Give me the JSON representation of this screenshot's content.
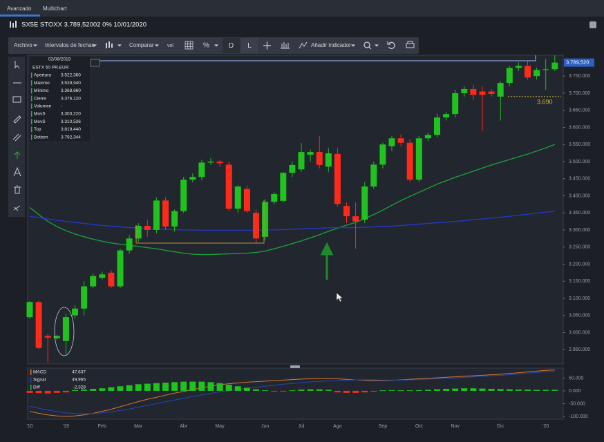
{
  "tabs": [
    "Avanzado",
    "Multichart"
  ],
  "header": "SX5E STOXX 3.789,52002 0% 10/01/2020",
  "toolbar": {
    "file": "Archivo",
    "ranges": "Intervalos de fechas",
    "compare": "Comparar",
    "volume": "vol",
    "percent": "%",
    "daily": "D",
    "log": "L",
    "add_indicator": "Añadir indicador"
  },
  "info_box": {
    "date": "02/08/2019",
    "name": "ESTX 50 PR.EUR",
    "rows": [
      [
        "Apertura",
        "3.522,360"
      ],
      [
        "Máximo",
        "3.539,940"
      ],
      [
        "Mínimo",
        "3.368,660"
      ],
      [
        "Cierre",
        "3.376,120"
      ],
      [
        "Volumen",
        "-"
      ],
      [
        "MovS",
        "3.303,220"
      ],
      [
        "MovS",
        "3.310,536"
      ],
      [
        "Top",
        "3.819,440"
      ],
      [
        "Bottom",
        "3.792,344"
      ]
    ]
  },
  "chart_data": [
    {
      "type": "candlestick",
      "categories": [
        "'10",
        null,
        null,
        null,
        "'19",
        null,
        null,
        null,
        "Feb",
        null,
        null,
        null,
        "Mar",
        null,
        null,
        null,
        null,
        "Abr",
        null,
        null,
        null,
        "May",
        null,
        null,
        null,
        null,
        "Jun",
        null,
        null,
        null,
        "Jul",
        null,
        null,
        null,
        "Ago",
        null,
        null,
        null,
        null,
        "Sep",
        null,
        null,
        null,
        "Oct",
        null,
        null,
        null,
        "Nov",
        null,
        null,
        null,
        null,
        "Dic",
        null,
        null,
        null,
        null,
        "'20",
        null
      ],
      "open": [
        3045,
        3089,
        2990,
        2983,
        2975,
        3050,
        3070,
        3135,
        3160,
        3175,
        3135,
        3240,
        3275,
        3312,
        3300,
        3386,
        3310,
        3355,
        3447,
        3455,
        3497,
        3500,
        3491,
        3362,
        3420,
        3350,
        3280,
        3382,
        3385,
        3467,
        3477,
        3520,
        3528,
        3485,
        3522.36,
        3370,
        3340,
        3330,
        3427,
        3491,
        3545,
        3568,
        3555,
        3447,
        3568,
        3578,
        3629,
        3639,
        3700,
        3712,
        3705,
        3705,
        3690,
        3730,
        3774,
        3780,
        3750,
        3768,
        3770
      ],
      "high": [
        3092,
        3093,
        2995,
        2992,
        3055,
        3080,
        3150,
        3172,
        3178,
        3182,
        3245,
        3285,
        3320,
        3330,
        3395,
        3395,
        3360,
        3455,
        3465,
        3505,
        3510,
        3505,
        3500,
        3430,
        3430,
        3360,
        3390,
        3410,
        3470,
        3500,
        3555,
        3535,
        3575,
        3540,
        3539.94,
        3380,
        3380,
        3440,
        3500,
        3555,
        3575,
        3580,
        3565,
        3575,
        3585,
        3640,
        3645,
        3710,
        3720,
        3725,
        3720,
        3712,
        3735,
        3780,
        3790,
        3795,
        3775,
        3800,
        3811
      ],
      "low": [
        3040,
        2950,
        2912,
        2978,
        2935,
        3040,
        3050,
        3130,
        3155,
        3130,
        3130,
        3230,
        3265,
        3280,
        3290,
        3300,
        3295,
        3350,
        3440,
        3445,
        3490,
        3485,
        3355,
        3350,
        3350,
        3260,
        3270,
        3375,
        3380,
        3455,
        3470,
        3500,
        3480,
        3470,
        3368.66,
        3320,
        3245,
        3320,
        3420,
        3480,
        3530,
        3545,
        3440,
        3440,
        3560,
        3570,
        3620,
        3630,
        3690,
        3680,
        3590,
        3690,
        3620,
        3720,
        3765,
        3740,
        3740,
        3710,
        3765
      ],
      "close": [
        3089,
        2955,
        2985,
        2990,
        3045,
        3070,
        3135,
        3165,
        3170,
        3135,
        3240,
        3275,
        3312,
        3300,
        3386,
        3310,
        3355,
        3447,
        3455,
        3497,
        3500,
        3495,
        3362,
        3427,
        3355,
        3275,
        3382,
        3405,
        3467,
        3490,
        3528,
        3528,
        3490,
        3524,
        3376.12,
        3340,
        3325,
        3427,
        3491,
        3550,
        3568,
        3555,
        3447,
        3568,
        3578,
        3629,
        3639,
        3700,
        3712,
        3695,
        3695,
        3698,
        3730,
        3774,
        3780,
        3746,
        3768,
        3770,
        3789.52
      ],
      "up_color": "#1fc21f",
      "down_color": "#ff2a1a",
      "lines": [
        {
          "color": "#1f9b3a",
          "values": [
            3366,
            3345,
            3325,
            3310,
            3298,
            3288,
            3280,
            3273,
            3267,
            3262,
            3258,
            3255,
            3252,
            3248,
            3245,
            3240,
            3236,
            3232,
            3229,
            3228,
            3228,
            3229,
            3230,
            3231,
            3232,
            3234,
            3238,
            3245,
            3252,
            3260,
            3268,
            3277,
            3286,
            3296,
            3305,
            3314,
            3322,
            3333,
            3345,
            3358,
            3372,
            3386,
            3398,
            3410,
            3422,
            3434,
            3444,
            3454,
            3463,
            3472,
            3481,
            3490,
            3498,
            3506,
            3514,
            3522,
            3531,
            3540,
            3550
          ]
        },
        {
          "color": "#2438c0",
          "values": [
            3340,
            3336,
            3332,
            3328,
            3325,
            3322,
            3319,
            3316,
            3313,
            3311,
            3309,
            3307,
            3306,
            3304,
            3303,
            3302,
            3301,
            3300,
            3300,
            3299,
            3299,
            3299,
            3299,
            3299,
            3299,
            3299,
            3300,
            3300,
            3301,
            3302,
            3303,
            3304,
            3305,
            3306,
            3307,
            3307,
            3307,
            3308,
            3309,
            3310,
            3311,
            3313,
            3315,
            3317,
            3319,
            3321,
            3323,
            3325,
            3327,
            3330,
            3332,
            3335,
            3337,
            3340,
            3343,
            3346,
            3349,
            3352,
            3355
          ]
        }
      ],
      "last_label": "3.789,520",
      "annotation": {
        "value": 3690,
        "label": "3.690",
        "color": "#d8b83c"
      },
      "ylim": [
        2912,
        3811
      ],
      "yticks": [
        {
          "value": 2950,
          "label": "2.950.000"
        },
        {
          "value": 3000,
          "label": "3.000.000"
        },
        {
          "value": 3050,
          "label": "3.050.000"
        },
        {
          "value": 3100,
          "label": "3.100.000"
        },
        {
          "value": 3150,
          "label": "3.150.000"
        },
        {
          "value": 3200,
          "label": "3.200.000"
        },
        {
          "value": 3250,
          "label": "3.250.000"
        },
        {
          "value": 3300,
          "label": "3.300.000"
        },
        {
          "value": 3350,
          "label": "3.350.000"
        },
        {
          "value": 3400,
          "label": "3.400.000"
        },
        {
          "value": 3450,
          "label": "3.450.000"
        },
        {
          "value": 3500,
          "label": "3.500.000"
        },
        {
          "value": 3550,
          "label": "3.550.000"
        },
        {
          "value": 3600,
          "label": "3.600.000"
        },
        {
          "value": 3650,
          "label": "3.650.000"
        },
        {
          "value": 3700,
          "label": "3.700.000"
        },
        {
          "value": 3750,
          "label": "3.750.000"
        }
      ],
      "grid": false
    },
    {
      "type": "macd",
      "series": [
        {
          "name": "MACD",
          "legend_value": "47,637",
          "style": "line",
          "color": "#d9792e",
          "values": [
            -80,
            -88,
            -94,
            -98,
            -100,
            -98,
            -94,
            -88,
            -80,
            -72,
            -62,
            -52,
            -42,
            -33,
            -25,
            -17,
            -9,
            -2,
            5,
            12,
            18,
            24,
            28,
            31,
            34,
            36,
            38,
            40,
            42,
            44,
            46,
            47,
            48,
            48,
            47,
            45,
            43,
            41,
            40,
            40,
            41,
            43,
            45,
            47,
            49,
            51,
            53,
            55,
            57,
            59,
            61,
            63,
            65,
            68,
            71,
            74,
            77,
            80,
            82
          ]
        },
        {
          "name": "Signal",
          "legend_value": "49,965",
          "style": "line",
          "color": "#2a44b8",
          "values": [
            -60,
            -68,
            -75,
            -81,
            -86,
            -89,
            -90,
            -89,
            -86,
            -82,
            -77,
            -71,
            -64,
            -57,
            -50,
            -43,
            -36,
            -29,
            -22,
            -16,
            -10,
            -4,
            1,
            6,
            10,
            14,
            18,
            22,
            26,
            29,
            32,
            35,
            37,
            39,
            41,
            42,
            43,
            43,
            43,
            42,
            42,
            42,
            43,
            44,
            46,
            47,
            49,
            51,
            53,
            55,
            57,
            59,
            61,
            63,
            66,
            69,
            72,
            75,
            78
          ]
        },
        {
          "name": "Diff",
          "legend_value": "-2,328",
          "style": "histogram",
          "up_color": "#1fc21f",
          "down_color": "#ff2a1a",
          "values": [
            -8,
            -9,
            -10,
            -8,
            -6,
            3,
            5,
            8,
            10,
            14,
            18,
            22,
            26,
            28,
            30,
            32,
            34,
            36,
            36,
            36,
            34,
            30,
            24,
            18,
            12,
            6,
            2,
            -2,
            -2,
            2,
            5,
            6,
            6,
            4,
            -6,
            -8,
            -8,
            -6,
            -3,
            2,
            3,
            2,
            2,
            3,
            4,
            6,
            8,
            9,
            10,
            10,
            9,
            8,
            7,
            6,
            5,
            5,
            4,
            4,
            4
          ]
        }
      ],
      "ylim": [
        -111,
        89
      ],
      "yticks": [
        {
          "value": 50,
          "label": "50.000"
        },
        {
          "value": 0,
          "label": "0.000"
        },
        {
          "value": -50,
          "label": "-50.000"
        },
        {
          "value": -100,
          "label": "-100.000"
        }
      ],
      "grid": false
    }
  ]
}
